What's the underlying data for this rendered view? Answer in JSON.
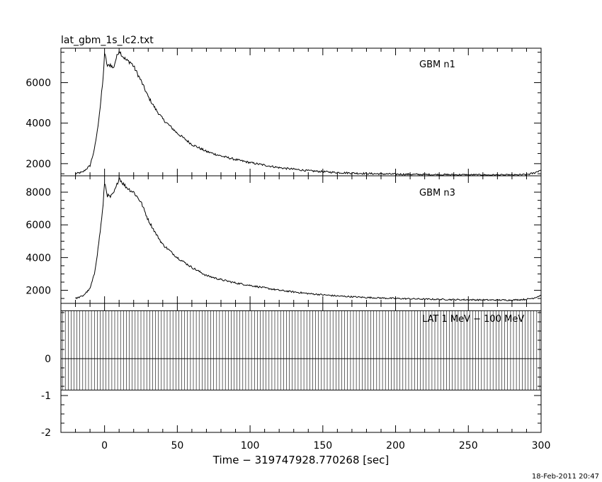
{
  "title": "lat_gbm_1s_lc2.txt",
  "footer_date": "18-Feb-2011 20:47",
  "xlabel": "Time − 319747928.770268 [sec]",
  "colors": {
    "line": "#000000",
    "background": "#ffffff"
  },
  "chart_data": [
    {
      "type": "line",
      "name": "GBM n1",
      "xlim": [
        -30,
        300
      ],
      "ylim": [
        1400,
        7700
      ],
      "yticks": [
        2000,
        4000,
        6000
      ],
      "xticks": [
        0,
        50,
        100,
        150,
        200,
        250,
        300
      ],
      "x": [
        -20,
        -15,
        -10,
        -7,
        -5,
        -3,
        -1,
        0,
        2,
        4,
        6,
        8,
        10,
        12,
        15,
        18,
        20,
        25,
        30,
        35,
        40,
        50,
        60,
        70,
        80,
        90,
        100,
        120,
        140,
        160,
        180,
        200,
        220,
        240,
        260,
        280,
        290,
        295,
        300
      ],
      "values": [
        1500,
        1580,
        1900,
        2700,
        3600,
        4800,
        6200,
        7450,
        6800,
        6900,
        6700,
        7200,
        7600,
        7350,
        7100,
        7000,
        6800,
        6100,
        5300,
        4700,
        4200,
        3500,
        2950,
        2600,
        2380,
        2200,
        2050,
        1800,
        1650,
        1560,
        1510,
        1480,
        1460,
        1450,
        1440,
        1430,
        1460,
        1530,
        1700
      ]
    },
    {
      "type": "line",
      "name": "GBM n3",
      "xlim": [
        -30,
        300
      ],
      "ylim": [
        1200,
        9000
      ],
      "yticks": [
        2000,
        4000,
        6000,
        8000
      ],
      "xticks": [
        0,
        50,
        100,
        150,
        200,
        250,
        300
      ],
      "x": [
        -20,
        -15,
        -10,
        -7,
        -5,
        -3,
        -1,
        0,
        2,
        4,
        6,
        8,
        10,
        12,
        15,
        18,
        20,
        25,
        30,
        35,
        40,
        50,
        60,
        70,
        80,
        90,
        100,
        120,
        140,
        160,
        180,
        200,
        220,
        240,
        260,
        280,
        290,
        295,
        300
      ],
      "values": [
        1500,
        1650,
        2100,
        3000,
        4200,
        5600,
        7200,
        8600,
        7800,
        7700,
        7900,
        8300,
        8900,
        8600,
        8300,
        8100,
        8000,
        7400,
        6300,
        5500,
        4800,
        4000,
        3400,
        2900,
        2650,
        2450,
        2300,
        2000,
        1800,
        1650,
        1560,
        1500,
        1460,
        1430,
        1410,
        1400,
        1450,
        1530,
        1700
      ]
    },
    {
      "type": "bar",
      "name": "LAT 1 MeV − 100 MeV",
      "xlim": [
        -30,
        300
      ],
      "ylim": [
        -2,
        1.5
      ],
      "yticks": [
        -2,
        -1,
        0
      ],
      "xticks": [
        0,
        50,
        100,
        150,
        200,
        250,
        300
      ],
      "bar_range": [
        -0.85,
        1.3
      ],
      "bar_spacing_sec": 2,
      "values": [
        0
      ]
    }
  ]
}
